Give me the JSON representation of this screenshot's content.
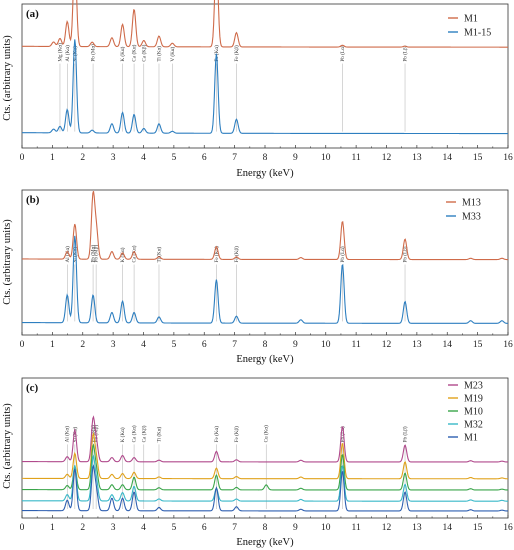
{
  "chart_data": [
    {
      "type": "line",
      "panel_label": "(a)",
      "xlabel": "Energy (keV)",
      "ylabel": "Cts. (arbitrary units)",
      "xlim": [
        0,
        16
      ],
      "x_ticks": [
        "0",
        "1",
        "2",
        "3",
        "4",
        "5",
        "6",
        "7",
        "8",
        "9",
        "10",
        "11",
        "12",
        "13",
        "14",
        "15",
        "16"
      ],
      "legend_position": "top-right",
      "series": [
        {
          "name": "M1",
          "color": "#cf6b4a",
          "peaks": [
            [
              1.04,
              0.05
            ],
            [
              1.25,
              0.09
            ],
            [
              1.49,
              0.28
            ],
            [
              1.74,
              1.0
            ],
            [
              2.31,
              0.05
            ],
            [
              2.96,
              0.1
            ],
            [
              3.31,
              0.25
            ],
            [
              3.69,
              0.42
            ],
            [
              4.01,
              0.07
            ],
            [
              4.51,
              0.12
            ],
            [
              4.95,
              0.04
            ],
            [
              6.4,
              1.0
            ],
            [
              7.06,
              0.16
            ],
            [
              10.55,
              0.02
            ],
            [
              12.6,
              0.01
            ]
          ]
        },
        {
          "name": "M1-15",
          "color": "#2e7fc0",
          "peaks": [
            [
              1.04,
              0.04
            ],
            [
              1.25,
              0.07
            ],
            [
              1.49,
              0.25
            ],
            [
              1.74,
              1.0
            ],
            [
              2.31,
              0.03
            ],
            [
              2.96,
              0.1
            ],
            [
              3.31,
              0.22
            ],
            [
              3.69,
              0.2
            ],
            [
              4.01,
              0.05
            ],
            [
              4.51,
              0.1
            ],
            [
              4.95,
              0.02
            ],
            [
              6.4,
              0.85
            ],
            [
              7.06,
              0.15
            ]
          ]
        }
      ],
      "peak_labels": [
        {
          "text": "Mg (Kα)",
          "x": 1.25
        },
        {
          "text": "Al (Kα)",
          "x": 1.49
        },
        {
          "text": "Si (Kα)",
          "x": 1.74
        },
        {
          "text": "Pb (Mα)",
          "x": 2.34
        },
        {
          "text": "K (Kα)",
          "x": 3.31
        },
        {
          "text": "Ca (Kα)",
          "x": 3.69
        },
        {
          "text": "Ca (Kβ)",
          "x": 4.01
        },
        {
          "text": "Ti (Kα)",
          "x": 4.51
        },
        {
          "text": "V (Kα)",
          "x": 4.95
        },
        {
          "text": "Fe (Kα)",
          "x": 6.4
        },
        {
          "text": "Fe (Kβ)",
          "x": 7.06
        },
        {
          "text": "Pb (Lα)",
          "x": 10.55
        },
        {
          "text": "Pb (Lβ)",
          "x": 12.61
        }
      ]
    },
    {
      "type": "line",
      "panel_label": "(b)",
      "xlabel": "Energy (keV)",
      "ylabel": "Cts. (arbitrary units)",
      "xlim": [
        0,
        16
      ],
      "x_ticks": [
        "0",
        "1",
        "2",
        "3",
        "4",
        "5",
        "6",
        "7",
        "8",
        "9",
        "10",
        "11",
        "12",
        "13",
        "14",
        "15",
        "16"
      ],
      "legend_position": "top-right",
      "series": [
        {
          "name": "M13",
          "color": "#cf6b4a",
          "peaks": [
            [
              1.49,
              0.12
            ],
            [
              1.74,
              0.55
            ],
            [
              2.34,
              1.0
            ],
            [
              2.45,
              0.45
            ],
            [
              2.96,
              0.12
            ],
            [
              3.31,
              0.1
            ],
            [
              3.69,
              0.12
            ],
            [
              4.51,
              0.04
            ],
            [
              6.4,
              0.2
            ],
            [
              7.06,
              0.04
            ],
            [
              9.18,
              0.03
            ],
            [
              10.55,
              0.6
            ],
            [
              12.61,
              0.32
            ],
            [
              14.77,
              0.02
            ],
            [
              15.8,
              0.02
            ]
          ]
        },
        {
          "name": "M33",
          "color": "#2e7fc0",
          "peaks": [
            [
              1.49,
              0.32
            ],
            [
              1.74,
              1.0
            ],
            [
              2.34,
              0.32
            ],
            [
              2.96,
              0.12
            ],
            [
              3.31,
              0.25
            ],
            [
              3.69,
              0.12
            ],
            [
              4.51,
              0.07
            ],
            [
              6.4,
              0.5
            ],
            [
              7.06,
              0.08
            ],
            [
              9.18,
              0.04
            ],
            [
              10.55,
              0.68
            ],
            [
              12.61,
              0.25
            ],
            [
              14.77,
              0.03
            ],
            [
              15.8,
              0.03
            ]
          ]
        }
      ],
      "peak_labels": [
        {
          "text": "Al (Kα)",
          "x": 1.49
        },
        {
          "text": "Si (Kα)",
          "x": 1.74
        },
        {
          "text": "Pb (Mα)",
          "x": 2.34
        },
        {
          "text": "Pb (Mβ)",
          "x": 2.44
        },
        {
          "text": "K (Kα)",
          "x": 3.31
        },
        {
          "text": "Ca (Kα)",
          "x": 3.69
        },
        {
          "text": "Ti (Kα)",
          "x": 4.51
        },
        {
          "text": "Fe (Kα)",
          "x": 6.4
        },
        {
          "text": "Fe (Kβ)",
          "x": 7.06
        },
        {
          "text": "Pb (Lα)",
          "x": 10.55
        },
        {
          "text": "Pb (Lβ)",
          "x": 12.61
        }
      ]
    },
    {
      "type": "line",
      "panel_label": "(c)",
      "xlabel": "Energy (keV)",
      "ylabel": "Cts. (arbitrary units)",
      "xlim": [
        0,
        16
      ],
      "x_ticks": [
        "0",
        "1",
        "2",
        "3",
        "4",
        "5",
        "6",
        "7",
        "8",
        "9",
        "10",
        "11",
        "12",
        "13",
        "14",
        "15",
        "16"
      ],
      "legend_position": "top-right",
      "series": [
        {
          "name": "M23",
          "color": "#b04a8c",
          "peaks": [
            [
              1.49,
              0.12
            ],
            [
              1.74,
              0.75
            ],
            [
              2.34,
              1.0
            ],
            [
              2.45,
              0.45
            ],
            [
              2.96,
              0.1
            ],
            [
              3.31,
              0.15
            ],
            [
              3.69,
              0.1
            ],
            [
              4.51,
              0.04
            ],
            [
              6.4,
              0.25
            ],
            [
              7.06,
              0.05
            ],
            [
              9.18,
              0.04
            ],
            [
              10.55,
              0.85
            ],
            [
              12.61,
              0.4
            ],
            [
              14.77,
              0.03
            ],
            [
              15.8,
              0.02
            ]
          ]
        },
        {
          "name": "M19",
          "color": "#e0a21c",
          "peaks": [
            [
              1.49,
              0.1
            ],
            [
              1.74,
              0.6
            ],
            [
              2.34,
              1.0
            ],
            [
              2.45,
              0.45
            ],
            [
              2.96,
              0.1
            ],
            [
              3.31,
              0.12
            ],
            [
              3.69,
              0.15
            ],
            [
              4.51,
              0.04
            ],
            [
              6.4,
              0.25
            ],
            [
              7.06,
              0.05
            ],
            [
              9.18,
              0.04
            ],
            [
              10.55,
              0.85
            ],
            [
              12.61,
              0.4
            ],
            [
              14.77,
              0.03
            ],
            [
              15.8,
              0.02
            ]
          ]
        },
        {
          "name": "M10",
          "color": "#3aa54a",
          "peaks": [
            [
              1.49,
              0.1
            ],
            [
              1.74,
              0.55
            ],
            [
              2.34,
              1.0
            ],
            [
              2.45,
              0.45
            ],
            [
              2.96,
              0.12
            ],
            [
              3.31,
              0.12
            ],
            [
              3.69,
              0.3
            ],
            [
              4.51,
              0.05
            ],
            [
              6.4,
              0.35
            ],
            [
              7.06,
              0.06
            ],
            [
              8.04,
              0.12
            ],
            [
              9.18,
              0.04
            ],
            [
              10.55,
              0.85
            ],
            [
              12.61,
              0.4
            ],
            [
              14.77,
              0.03
            ],
            [
              15.8,
              0.02
            ]
          ]
        },
        {
          "name": "M32",
          "color": "#38b8c8",
          "peaks": [
            [
              1.49,
              0.15
            ],
            [
              1.74,
              0.85
            ],
            [
              2.34,
              1.0
            ],
            [
              2.45,
              0.45
            ],
            [
              2.96,
              0.15
            ],
            [
              3.31,
              0.2
            ],
            [
              3.69,
              0.35
            ],
            [
              4.51,
              0.05
            ],
            [
              6.4,
              0.3
            ],
            [
              7.06,
              0.05
            ],
            [
              9.18,
              0.04
            ],
            [
              10.55,
              0.85
            ],
            [
              12.61,
              0.4
            ],
            [
              14.77,
              0.03
            ],
            [
              15.8,
              0.02
            ]
          ]
        },
        {
          "name": "M1",
          "color": "#2e5fb0",
          "peaks": [
            [
              1.49,
              0.25
            ],
            [
              1.74,
              1.0
            ],
            [
              2.34,
              1.0
            ],
            [
              2.45,
              0.45
            ],
            [
              2.96,
              0.3
            ],
            [
              3.31,
              0.3
            ],
            [
              3.69,
              0.45
            ],
            [
              4.51,
              0.08
            ],
            [
              6.4,
              0.55
            ],
            [
              7.06,
              0.1
            ],
            [
              9.18,
              0.04
            ],
            [
              10.55,
              0.95
            ],
            [
              12.61,
              0.45
            ],
            [
              14.77,
              0.03
            ],
            [
              15.8,
              0.02
            ]
          ]
        }
      ],
      "peak_labels": [
        {
          "text": "Al (Kα)",
          "x": 1.49
        },
        {
          "text": "Si (Kα)",
          "x": 1.74
        },
        {
          "text": "Pb (Mα)",
          "x": 2.34
        },
        {
          "text": "Pb (Mβ)",
          "x": 2.44
        },
        {
          "text": "K (Kα)",
          "x": 3.31
        },
        {
          "text": "Ca (Kα)",
          "x": 3.69
        },
        {
          "text": "Ca (Kβ)",
          "x": 4.01
        },
        {
          "text": "Ti (Kα)",
          "x": 4.51
        },
        {
          "text": "Fe (Kα)",
          "x": 6.4
        },
        {
          "text": "Fe (Kβ)",
          "x": 7.06
        },
        {
          "text": "Cu (Kα)",
          "x": 8.04
        },
        {
          "text": "Pb (Lα)",
          "x": 10.55
        },
        {
          "text": "Pb (Lβ)",
          "x": 12.61
        }
      ]
    }
  ]
}
